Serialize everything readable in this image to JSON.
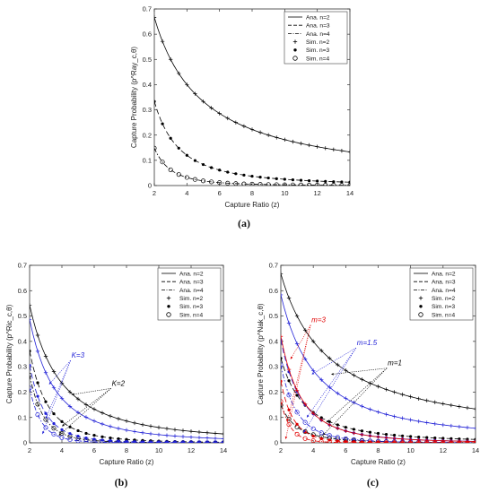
{
  "chart_data": [
    {
      "type": "line",
      "panel_caption": "(a)",
      "xlabel": "Capture Ratio (z)",
      "ylabel": "Capture Probability (p^Ray_c,θ)",
      "xlim": [
        2,
        14
      ],
      "ylim": [
        0,
        0.7
      ],
      "xticks": [
        "2",
        "4",
        "6",
        "8",
        "10",
        "12",
        "14"
      ],
      "yticks": [
        "0",
        "0.1",
        "0.2",
        "0.3",
        "0.4",
        "0.5",
        "0.6",
        "0.7"
      ],
      "grid": false,
      "legend_position": "top-right",
      "legend": [
        {
          "label": "Ana. n=2",
          "style": "solid"
        },
        {
          "label": "Ana. n=3",
          "style": "dashed"
        },
        {
          "label": "Ana. n=4",
          "style": "dashdot"
        },
        {
          "label": "Sim. n=2",
          "marker": "plus"
        },
        {
          "label": "Sim. n=3",
          "marker": "dot"
        },
        {
          "label": "Sim. n=4",
          "marker": "circle"
        }
      ],
      "annotations": [],
      "series": [
        {
          "model": "ray",
          "k": 1,
          "n": 2,
          "color": "#000000"
        },
        {
          "model": "ray",
          "k": 1,
          "n": 3,
          "color": "#000000"
        },
        {
          "model": "ray",
          "k": 1,
          "n": 4,
          "color": "#000000"
        }
      ]
    },
    {
      "type": "line",
      "panel_caption": "(b)",
      "xlabel": "Capture Ratio (z)",
      "ylabel": "Capture Probability (p^Ric_c,θ)",
      "xlim": [
        2,
        14
      ],
      "ylim": [
        0,
        0.7
      ],
      "xticks": [
        "2",
        "4",
        "6",
        "8",
        "10",
        "12",
        "14"
      ],
      "yticks": [
        "0",
        "0.1",
        "0.2",
        "0.3",
        "0.4",
        "0.5",
        "0.6",
        "0.7"
      ],
      "grid": false,
      "legend_position": "top-right",
      "legend": [
        {
          "label": "Ana. n=2",
          "style": "solid"
        },
        {
          "label": "Ana. n=3",
          "style": "dashed"
        },
        {
          "label": "Ana. n=4",
          "style": "dashdot"
        },
        {
          "label": "Sim. n=2",
          "marker": "plus"
        },
        {
          "label": "Sim. n=3",
          "marker": "dot"
        },
        {
          "label": "Sim. n=4",
          "marker": "circle"
        }
      ],
      "annotations": [
        {
          "text": "K=3",
          "color": "#1f1fd6",
          "tx": 4.7,
          "ty": 0.335,
          "targets": [
            [
              3.2,
              0.23
            ],
            [
              3.0,
              0.095
            ],
            [
              2.8,
              0.035
            ]
          ]
        },
        {
          "text": "K=2",
          "color": "#000000",
          "tx": 7.2,
          "ty": 0.225,
          "targets": [
            [
              4.6,
              0.19
            ],
            [
              4.0,
              0.065
            ],
            [
              3.8,
              0.028
            ]
          ]
        }
      ],
      "series": [
        {
          "model": "ric",
          "k": 2,
          "n": 2,
          "color": "#000000"
        },
        {
          "model": "ric",
          "k": 2,
          "n": 3,
          "color": "#000000"
        },
        {
          "model": "ric",
          "k": 2,
          "n": 4,
          "color": "#000000"
        },
        {
          "model": "ric",
          "k": 3,
          "n": 2,
          "color": "#1f1fd6"
        },
        {
          "model": "ric",
          "k": 3,
          "n": 3,
          "color": "#1f1fd6"
        },
        {
          "model": "ric",
          "k": 3,
          "n": 4,
          "color": "#1f1fd6"
        }
      ]
    },
    {
      "type": "line",
      "panel_caption": "(c)",
      "xlabel": "Capture Ratio (z)",
      "ylabel": "Capture Probability (p^Nak_c,θ)",
      "xlim": [
        2,
        14
      ],
      "ylim": [
        0,
        0.7
      ],
      "xticks": [
        "2",
        "4",
        "6",
        "8",
        "10",
        "12",
        "14"
      ],
      "yticks": [
        "0",
        "0.1",
        "0.2",
        "0.3",
        "0.4",
        "0.5",
        "0.6",
        "0.7"
      ],
      "grid": false,
      "legend_position": "top-right",
      "legend": [
        {
          "label": "Ana. n=2",
          "style": "solid"
        },
        {
          "label": "Ana. n=3",
          "style": "dashed"
        },
        {
          "label": "Ana. n=4",
          "style": "dashdot"
        },
        {
          "label": "Sim. n=2",
          "marker": "plus"
        },
        {
          "label": "Sim. n=3",
          "marker": "dot"
        },
        {
          "label": "Sim. n=4",
          "marker": "circle"
        }
      ],
      "annotations": [
        {
          "text": "m=3",
          "color": "#e00000",
          "tx": 4.0,
          "ty": 0.475,
          "targets": [
            [
              2.6,
              0.33
            ],
            [
              2.4,
              0.085
            ],
            [
              2.3,
              0.015
            ]
          ]
        },
        {
          "text": "m=1.5",
          "color": "#1f1fd6",
          "tx": 6.8,
          "ty": 0.385,
          "targets": [
            [
              3.9,
              0.27
            ],
            [
              3.6,
              0.1
            ],
            [
              3.4,
              0.04
            ]
          ]
        },
        {
          "text": "m=1",
          "color": "#000000",
          "tx": 8.7,
          "ty": 0.305,
          "targets": [
            [
              5.1,
              0.27
            ],
            [
              4.8,
              0.08
            ],
            [
              4.6,
              0.03
            ]
          ]
        }
      ],
      "series": [
        {
          "model": "nak",
          "m": 1,
          "n": 2,
          "color": "#000000"
        },
        {
          "model": "nak",
          "m": 1,
          "n": 3,
          "color": "#000000"
        },
        {
          "model": "nak",
          "m": 1,
          "n": 4,
          "color": "#000000"
        },
        {
          "model": "nak",
          "m": 1.5,
          "n": 2,
          "color": "#1f1fd6"
        },
        {
          "model": "nak",
          "m": 1.5,
          "n": 3,
          "color": "#1f1fd6"
        },
        {
          "model": "nak",
          "m": 1.5,
          "n": 4,
          "color": "#1f1fd6"
        },
        {
          "model": "nak",
          "m": 3,
          "n": 2,
          "color": "#e00000"
        },
        {
          "model": "nak",
          "m": 3,
          "n": 3,
          "color": "#e00000"
        },
        {
          "model": "nak",
          "m": 3,
          "n": 4,
          "color": "#e00000"
        }
      ]
    }
  ]
}
